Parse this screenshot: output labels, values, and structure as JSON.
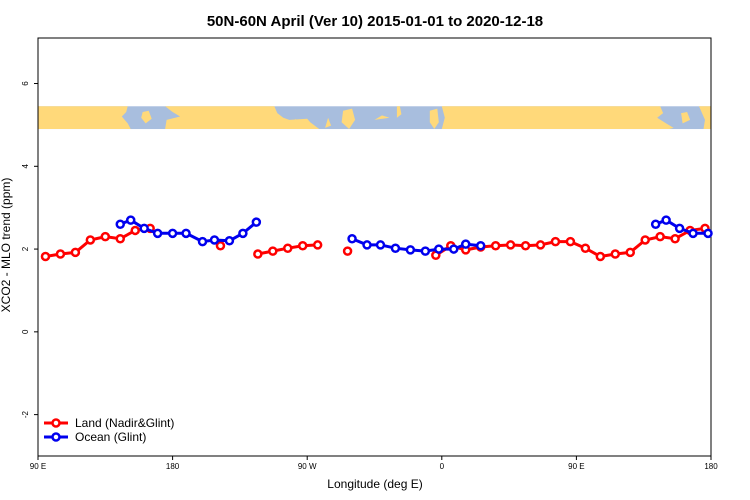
{
  "chart_data": {
    "type": "line",
    "title": "50N-60N April (Ver 10)   2015-01-01 to 2020-12-18",
    "xlabel": "Longitude (deg E)",
    "ylabel": "XCO2 - MLO trend (ppm)",
    "xlim": [
      90,
      540
    ],
    "ylim": [
      -3,
      7.1
    ],
    "x_ticks": [
      {
        "value": 90,
        "label": "90 E"
      },
      {
        "value": 180,
        "label": "180"
      },
      {
        "value": 270,
        "label": "90 W"
      },
      {
        "value": 360,
        "label": "0"
      },
      {
        "value": 450,
        "label": "90 E"
      },
      {
        "value": 540,
        "label": "180"
      }
    ],
    "y_ticks": [
      -2,
      0,
      2,
      4,
      6
    ],
    "map_band": {
      "y_min": 4.9,
      "y_max": 5.45,
      "land_color": "#ffd97a",
      "ocean_color": "#a8bede"
    },
    "legend": {
      "position": "bottom-left"
    },
    "series": [
      {
        "name": "Land (Nadir&Glint)",
        "color": "#ff0000",
        "segments": [
          [
            [
              95,
              1.82
            ],
            [
              105,
              1.88
            ],
            [
              115,
              1.92
            ],
            [
              125,
              2.22
            ],
            [
              135,
              2.3
            ],
            [
              145,
              2.25
            ],
            [
              155,
              2.45
            ],
            [
              165,
              2.5
            ]
          ],
          [
            [
              212,
              2.08
            ]
          ],
          [
            [
              237,
              1.88
            ],
            [
              247,
              1.95
            ],
            [
              257,
              2.02
            ],
            [
              267,
              2.08
            ],
            [
              277,
              2.1
            ]
          ],
          [
            [
              297,
              1.95
            ]
          ],
          [
            [
              356,
              1.85
            ],
            [
              366,
              2.08
            ],
            [
              376,
              1.98
            ],
            [
              386,
              2.05
            ],
            [
              396,
              2.08
            ],
            [
              406,
              2.1
            ],
            [
              416,
              2.08
            ],
            [
              426,
              2.1
            ],
            [
              436,
              2.18
            ],
            [
              446,
              2.18
            ],
            [
              456,
              2.02
            ],
            [
              466,
              1.82
            ],
            [
              476,
              1.88
            ],
            [
              486,
              1.92
            ],
            [
              496,
              2.22
            ],
            [
              506,
              2.3
            ],
            [
              516,
              2.25
            ],
            [
              526,
              2.45
            ],
            [
              536,
              2.5
            ]
          ]
        ]
      },
      {
        "name": "Ocean (Glint)",
        "color": "#0000ee",
        "segments": [
          [
            [
              145,
              2.6
            ],
            [
              152,
              2.7
            ],
            [
              161,
              2.5
            ],
            [
              170,
              2.38
            ],
            [
              180,
              2.38
            ],
            [
              189,
              2.38
            ],
            [
              200,
              2.18
            ],
            [
              208,
              2.22
            ],
            [
              218,
              2.2
            ],
            [
              227,
              2.38
            ],
            [
              236,
              2.65
            ]
          ],
          [
            [
              300,
              2.25
            ],
            [
              310,
              2.1
            ],
            [
              319,
              2.1
            ],
            [
              329,
              2.02
            ],
            [
              339,
              1.98
            ],
            [
              349,
              1.95
            ],
            [
              358,
              2.0
            ],
            [
              368,
              2.0
            ],
            [
              376,
              2.12
            ],
            [
              386,
              2.08
            ]
          ],
          [
            [
              503,
              2.6
            ],
            [
              510,
              2.7
            ],
            [
              519,
              2.5
            ],
            [
              528,
              2.38
            ],
            [
              538,
              2.38
            ]
          ]
        ]
      }
    ]
  }
}
